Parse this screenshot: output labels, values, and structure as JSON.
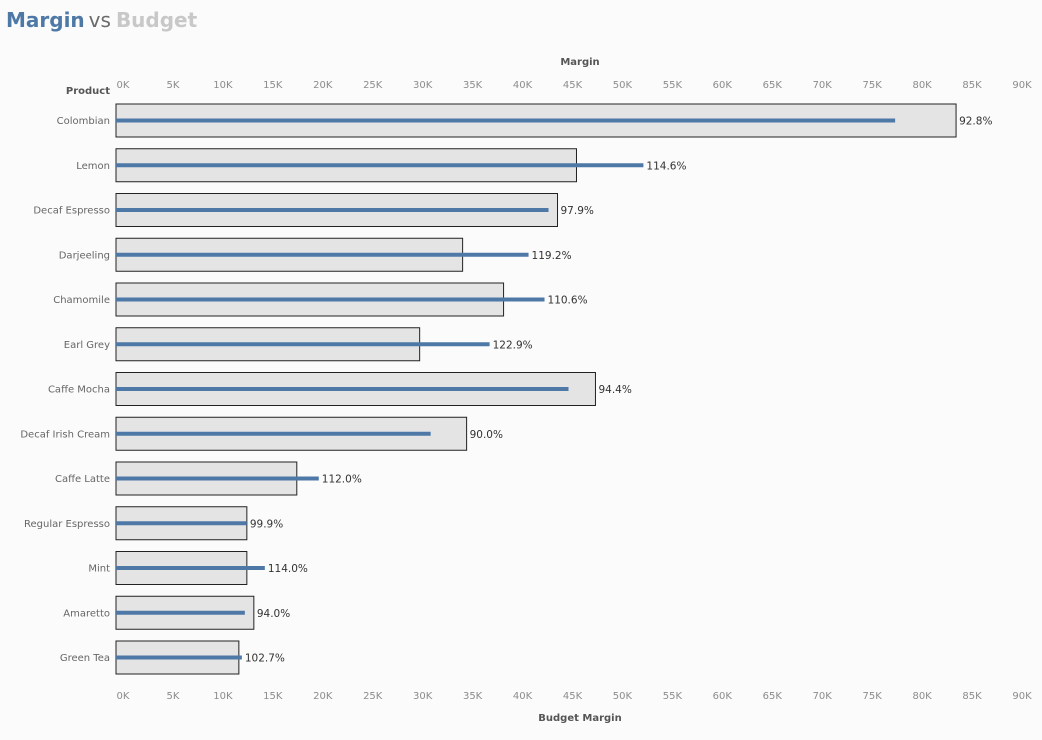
{
  "title": {
    "part1": "Margin",
    "part2": "vs",
    "part3": "Budget"
  },
  "colors": {
    "margin_bar": "#4e79a7",
    "budget_bar_fill": "#e4e4e4",
    "budget_bar_stroke": "#222222",
    "title_budget": "#c8c8c8"
  },
  "chart_data": {
    "type": "bar",
    "orientation": "horizontal",
    "row_header": "Product",
    "top_axis_title": "Margin",
    "bottom_axis_title": "Budget Margin",
    "xlim": [
      0,
      90000
    ],
    "x_ticks": [
      "0K",
      "5K",
      "10K",
      "15K",
      "20K",
      "25K",
      "30K",
      "35K",
      "40K",
      "45K",
      "50K",
      "55K",
      "60K",
      "65K",
      "70K",
      "75K",
      "80K",
      "85K",
      "90K"
    ],
    "categories": [
      "Colombian",
      "Lemon",
      "Decaf Espresso",
      "Darjeeling",
      "Chamomile",
      "Earl Grey",
      "Caffe Mocha",
      "Decaf Irish Cream",
      "Caffe Latte",
      "Regular Espresso",
      "Mint",
      "Amaretto",
      "Green Tea"
    ],
    "series": [
      {
        "name": "Budget Margin",
        "values": [
          84100,
          46100,
          44200,
          34700,
          38800,
          30400,
          48000,
          35100,
          18100,
          13100,
          13100,
          13800,
          12300
        ]
      },
      {
        "name": "Margin",
        "values": [
          78000,
          52800,
          43300,
          41300,
          42900,
          37400,
          45300,
          31500,
          20300,
          13100,
          14900,
          12900,
          12600
        ]
      }
    ],
    "labels": [
      "92.8%",
      "114.6%",
      "97.9%",
      "119.2%",
      "110.6%",
      "122.9%",
      "94.4%",
      "90.0%",
      "112.0%",
      "99.9%",
      "114.0%",
      "94.0%",
      "102.7%"
    ],
    "grid": false,
    "legend": "none"
  }
}
